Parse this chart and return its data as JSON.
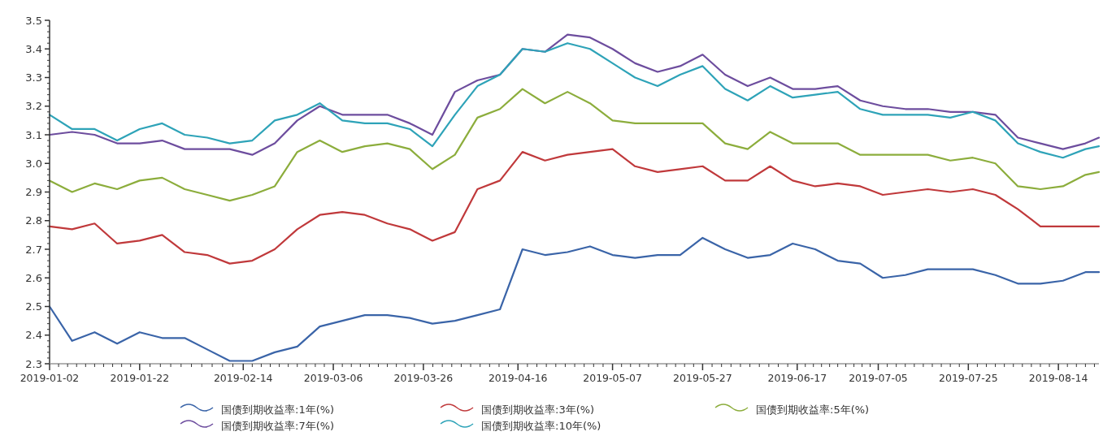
{
  "chart_data": {
    "type": "line",
    "x": [
      "2019-01-02",
      "2019-01-07",
      "2019-01-12",
      "2019-01-17",
      "2019-01-22",
      "2019-01-27",
      "2019-02-01",
      "2019-02-06",
      "2019-02-11",
      "2019-02-16",
      "2019-02-21",
      "2019-02-26",
      "2019-03-03",
      "2019-03-08",
      "2019-03-13",
      "2019-03-18",
      "2019-03-23",
      "2019-03-28",
      "2019-04-02",
      "2019-04-07",
      "2019-04-12",
      "2019-04-17",
      "2019-04-22",
      "2019-04-27",
      "2019-05-02",
      "2019-05-07",
      "2019-05-12",
      "2019-05-17",
      "2019-05-22",
      "2019-05-27",
      "2019-06-01",
      "2019-06-06",
      "2019-06-11",
      "2019-06-16",
      "2019-06-21",
      "2019-06-26",
      "2019-07-01",
      "2019-07-06",
      "2019-07-11",
      "2019-07-16",
      "2019-07-21",
      "2019-07-26",
      "2019-07-31",
      "2019-08-05",
      "2019-08-10",
      "2019-08-15",
      "2019-08-20",
      "2019-08-23"
    ],
    "series": [
      {
        "name": "国债到期收益率:1年(%)",
        "color": "#3a64a8",
        "values": [
          2.5,
          2.38,
          2.41,
          2.37,
          2.41,
          2.39,
          2.39,
          2.35,
          2.31,
          2.31,
          2.34,
          2.36,
          2.43,
          2.45,
          2.47,
          2.47,
          2.46,
          2.44,
          2.45,
          2.47,
          2.49,
          2.7,
          2.68,
          2.69,
          2.71,
          2.68,
          2.67,
          2.68,
          2.68,
          2.74,
          2.7,
          2.67,
          2.68,
          2.72,
          2.7,
          2.66,
          2.65,
          2.6,
          2.61,
          2.63,
          2.63,
          2.63,
          2.61,
          2.58,
          2.58,
          2.59,
          2.62,
          2.62
        ]
      },
      {
        "name": "国债到期收益率:3年(%)",
        "color": "#c0393b",
        "values": [
          2.78,
          2.77,
          2.79,
          2.72,
          2.73,
          2.75,
          2.69,
          2.68,
          2.65,
          2.66,
          2.7,
          2.77,
          2.82,
          2.83,
          2.82,
          2.79,
          2.77,
          2.73,
          2.76,
          2.91,
          2.94,
          3.04,
          3.01,
          3.03,
          3.04,
          3.05,
          2.99,
          2.97,
          2.98,
          2.99,
          2.94,
          2.94,
          2.99,
          2.94,
          2.92,
          2.93,
          2.92,
          2.89,
          2.9,
          2.91,
          2.9,
          2.91,
          2.89,
          2.84,
          2.78,
          2.78,
          2.78,
          2.78
        ]
      },
      {
        "name": "国债到期收益率:5年(%)",
        "color": "#8cad3c",
        "values": [
          2.94,
          2.9,
          2.93,
          2.91,
          2.94,
          2.95,
          2.91,
          2.89,
          2.87,
          2.89,
          2.92,
          3.04,
          3.08,
          3.04,
          3.06,
          3.07,
          3.05,
          2.98,
          3.03,
          3.16,
          3.19,
          3.26,
          3.21,
          3.25,
          3.21,
          3.15,
          3.14,
          3.14,
          3.14,
          3.14,
          3.07,
          3.05,
          3.11,
          3.07,
          3.07,
          3.07,
          3.03,
          3.03,
          3.03,
          3.03,
          3.01,
          3.02,
          3.0,
          2.92,
          2.91,
          2.92,
          2.96,
          2.97
        ]
      },
      {
        "name": "国债到期收益率:7年(%)",
        "color": "#6d4d9e",
        "values": [
          3.1,
          3.11,
          3.1,
          3.07,
          3.07,
          3.08,
          3.05,
          3.05,
          3.05,
          3.03,
          3.07,
          3.15,
          3.2,
          3.17,
          3.17,
          3.17,
          3.14,
          3.1,
          3.25,
          3.29,
          3.31,
          3.4,
          3.39,
          3.45,
          3.44,
          3.4,
          3.35,
          3.32,
          3.34,
          3.38,
          3.31,
          3.27,
          3.3,
          3.26,
          3.26,
          3.27,
          3.22,
          3.2,
          3.19,
          3.19,
          3.18,
          3.18,
          3.17,
          3.09,
          3.07,
          3.05,
          3.07,
          3.09
        ]
      },
      {
        "name": "国债到期收益率:10年(%)",
        "color": "#2ea3b8",
        "values": [
          3.17,
          3.12,
          3.12,
          3.08,
          3.12,
          3.14,
          3.1,
          3.09,
          3.07,
          3.08,
          3.15,
          3.17,
          3.21,
          3.15,
          3.14,
          3.14,
          3.12,
          3.06,
          3.17,
          3.27,
          3.31,
          3.4,
          3.39,
          3.42,
          3.4,
          3.35,
          3.3,
          3.27,
          3.31,
          3.34,
          3.26,
          3.22,
          3.27,
          3.23,
          3.24,
          3.25,
          3.19,
          3.17,
          3.17,
          3.17,
          3.16,
          3.18,
          3.15,
          3.07,
          3.04,
          3.02,
          3.05,
          3.06
        ]
      }
    ],
    "xlim": [
      "2019-01-02",
      "2019-08-23"
    ],
    "xticks": [
      "2019-01-02",
      "2019-01-22",
      "2019-02-14",
      "2019-03-06",
      "2019-03-26",
      "2019-04-16",
      "2019-05-07",
      "2019-05-27",
      "2019-06-17",
      "2019-07-05",
      "2019-07-25",
      "2019-08-14"
    ],
    "ylim": [
      2.3,
      3.5
    ],
    "yticks": [
      2.3,
      2.4,
      2.5,
      2.6,
      2.7,
      2.8,
      2.9,
      {
        "value": 3,
        "label": "3.0"
      },
      3.1,
      3.2,
      3.3,
      3.4,
      3.5
    ],
    "grid": false,
    "legend": "bottom",
    "marker": "none",
    "line_style": "solid"
  }
}
